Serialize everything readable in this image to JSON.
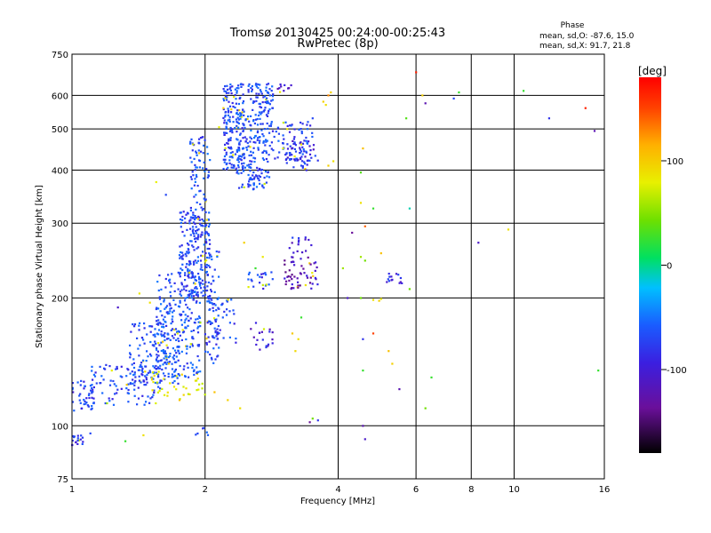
{
  "chart_data": {
    "type": "scatter",
    "title": "Tromsø 20130425 00:24:00-00:25:43",
    "subtitle": "RwPretec (8p)",
    "xlabel": "Frequency [MHz]",
    "ylabel": "Stationary phase Virtual Height [km]",
    "x_scale": "log",
    "y_scale": "log",
    "xlim": [
      1,
      16
    ],
    "ylim": [
      75,
      750
    ],
    "x_ticks": [
      {
        "value": 1,
        "label": "1"
      },
      {
        "value": 2,
        "label": "2"
      },
      {
        "value": 4,
        "label": "4"
      },
      {
        "value": 6,
        "label": "6"
      },
      {
        "value": 8,
        "label": "8"
      },
      {
        "value": 10,
        "label": "10"
      },
      {
        "value": 16,
        "label": "16"
      }
    ],
    "y_ticks": [
      {
        "value": 75,
        "label": "75"
      },
      {
        "value": 100,
        "label": "100"
      },
      {
        "value": 200,
        "label": "200"
      },
      {
        "value": 300,
        "label": "300"
      },
      {
        "value": 400,
        "label": "400"
      },
      {
        "value": 500,
        "label": "500"
      },
      {
        "value": 600,
        "label": "600"
      },
      {
        "value": 750,
        "label": "750"
      }
    ],
    "grid": true,
    "colorbar": {
      "label": "[deg]",
      "range": [
        -180,
        180
      ],
      "ticks": [
        {
          "value": 100,
          "label": "100"
        },
        {
          "value": 0,
          "label": "0"
        },
        {
          "value": -100,
          "label": "-100"
        }
      ]
    },
    "stats": {
      "heading": "Phase",
      "line_o": "mean, sd,O: -87.6, 15.0",
      "line_x": "mean, sd,X:  91.7, 21.8"
    },
    "clusters": [
      {
        "f": [
          1.0,
          1.06
        ],
        "h": [
          90,
          95
        ],
        "phase": -110,
        "n": 18
      },
      {
        "f": [
          1.0,
          1.12
        ],
        "h": [
          108,
          128
        ],
        "phase": -105,
        "n": 40
      },
      {
        "f": [
          1.1,
          1.6
        ],
        "h": [
          112,
          140
        ],
        "phase": -100,
        "n": 110
      },
      {
        "f": [
          1.35,
          1.75
        ],
        "h": [
          125,
          175
        ],
        "phase": -95,
        "n": 120
      },
      {
        "f": [
          1.5,
          2.0
        ],
        "h": [
          115,
          135
        ],
        "phase": 90,
        "n": 35
      },
      {
        "f": [
          1.55,
          1.95
        ],
        "h": [
          130,
          230
        ],
        "phase": -95,
        "n": 260
      },
      {
        "f": [
          1.75,
          2.05
        ],
        "h": [
          200,
          320
        ],
        "phase": -100,
        "n": 200
      },
      {
        "f": [
          1.85,
          2.05
        ],
        "h": [
          280,
          480
        ],
        "phase": -95,
        "n": 90
      },
      {
        "f": [
          2.0,
          2.15
        ],
        "h": [
          140,
          260
        ],
        "phase": -98,
        "n": 80
      },
      {
        "f": [
          2.05,
          2.35
        ],
        "h": [
          155,
          200
        ],
        "phase": -100,
        "n": 35
      },
      {
        "f": [
          2.2,
          2.45
        ],
        "h": [
          400,
          640
        ],
        "phase": -100,
        "n": 170
      },
      {
        "f": [
          2.35,
          2.8
        ],
        "h": [
          360,
          560
        ],
        "phase": -95,
        "n": 200
      },
      {
        "f": [
          2.5,
          2.85
        ],
        "h": [
          560,
          640
        ],
        "phase": -100,
        "n": 60
      },
      {
        "f": [
          2.8,
          3.5
        ],
        "h": [
          420,
          520
        ],
        "phase": -100,
        "n": 70
      },
      {
        "f": [
          3.0,
          3.6
        ],
        "h": [
          400,
          470
        ],
        "phase": -115,
        "n": 40
      },
      {
        "f": [
          2.45,
          2.85
        ],
        "h": [
          150,
          175
        ],
        "phase": -120,
        "n": 20
      },
      {
        "f": [
          2.5,
          2.85
        ],
        "h": [
          210,
          230
        ],
        "phase": -105,
        "n": 22
      },
      {
        "f": [
          3.0,
          3.6
        ],
        "h": [
          210,
          250
        ],
        "phase": -135,
        "n": 55
      },
      {
        "f": [
          3.1,
          3.5
        ],
        "h": [
          255,
          280
        ],
        "phase": -120,
        "n": 15
      },
      {
        "f": [
          3.3,
          3.45
        ],
        "h": [
          400,
          470
        ],
        "phase": -100,
        "n": 15
      },
      {
        "f": [
          5.1,
          5.6
        ],
        "h": [
          215,
          230
        ],
        "phase": -115,
        "n": 14
      },
      {
        "f": [
          2.9,
          3.15
        ],
        "h": [
          610,
          640
        ],
        "phase": -125,
        "n": 10
      },
      {
        "f": [
          1.9,
          2.1
        ],
        "h": [
          95,
          100
        ],
        "phase": -100,
        "n": 6
      }
    ],
    "extra_points": [
      {
        "f": 1.5,
        "h": 195,
        "phase": 100
      },
      {
        "f": 1.42,
        "h": 205,
        "phase": 95
      },
      {
        "f": 1.27,
        "h": 190,
        "phase": -130
      },
      {
        "f": 1.33,
        "h": 125,
        "phase": 110
      },
      {
        "f": 1.23,
        "h": 135,
        "phase": 90
      },
      {
        "f": 1.45,
        "h": 95,
        "phase": 100
      },
      {
        "f": 1.32,
        "h": 92,
        "phase": 20
      },
      {
        "f": 1.55,
        "h": 375,
        "phase": 90
      },
      {
        "f": 1.63,
        "h": 350,
        "phase": -100
      },
      {
        "f": 1.95,
        "h": 175,
        "phase": 60
      },
      {
        "f": 2.1,
        "h": 120,
        "phase": 120
      },
      {
        "f": 2.25,
        "h": 115,
        "phase": 110
      },
      {
        "f": 2.4,
        "h": 110,
        "phase": 100
      },
      {
        "f": 2.6,
        "h": 235,
        "phase": 20
      },
      {
        "f": 2.7,
        "h": 250,
        "phase": 95
      },
      {
        "f": 2.2,
        "h": 560,
        "phase": 110
      },
      {
        "f": 2.15,
        "h": 505,
        "phase": 90
      },
      {
        "f": 2.45,
        "h": 270,
        "phase": 110
      },
      {
        "f": 3.15,
        "h": 165,
        "phase": 115
      },
      {
        "f": 3.2,
        "h": 150,
        "phase": 105
      },
      {
        "f": 3.25,
        "h": 160,
        "phase": 100
      },
      {
        "f": 3.3,
        "h": 180,
        "phase": 20
      },
      {
        "f": 3.7,
        "h": 580,
        "phase": 110
      },
      {
        "f": 3.75,
        "h": 570,
        "phase": 100
      },
      {
        "f": 3.8,
        "h": 600,
        "phase": 140
      },
      {
        "f": 3.85,
        "h": 610,
        "phase": 110
      },
      {
        "f": 3.8,
        "h": 410,
        "phase": 110
      },
      {
        "f": 3.9,
        "h": 420,
        "phase": 100
      },
      {
        "f": 3.3,
        "h": 460,
        "phase": 100
      },
      {
        "f": 3.5,
        "h": 530,
        "phase": -100
      },
      {
        "f": 3.5,
        "h": 104,
        "phase": 40
      },
      {
        "f": 3.6,
        "h": 103,
        "phase": -110
      },
      {
        "f": 3.45,
        "h": 102,
        "phase": -150
      },
      {
        "f": 4.1,
        "h": 235,
        "phase": 60
      },
      {
        "f": 4.3,
        "h": 285,
        "phase": -150
      },
      {
        "f": 4.5,
        "h": 395,
        "phase": 30
      },
      {
        "f": 4.55,
        "h": 450,
        "phase": 120
      },
      {
        "f": 4.6,
        "h": 295,
        "phase": 150
      },
      {
        "f": 4.5,
        "h": 250,
        "phase": 60
      },
      {
        "f": 4.6,
        "h": 245,
        "phase": 40
      },
      {
        "f": 4.5,
        "h": 335,
        "phase": 100
      },
      {
        "f": 4.8,
        "h": 325,
        "phase": 20
      },
      {
        "f": 4.2,
        "h": 200,
        "phase": -130
      },
      {
        "f": 4.8,
        "h": 198,
        "phase": 100
      },
      {
        "f": 4.95,
        "h": 197,
        "phase": 110
      },
      {
        "f": 5.0,
        "h": 199,
        "phase": 95
      },
      {
        "f": 4.5,
        "h": 200,
        "phase": 40
      },
      {
        "f": 5.0,
        "h": 255,
        "phase": 120
      },
      {
        "f": 4.8,
        "h": 165,
        "phase": 160
      },
      {
        "f": 4.55,
        "h": 160,
        "phase": -110
      },
      {
        "f": 5.2,
        "h": 150,
        "phase": 120
      },
      {
        "f": 4.55,
        "h": 135,
        "phase": 20
      },
      {
        "f": 5.3,
        "h": 140,
        "phase": 110
      },
      {
        "f": 5.5,
        "h": 122,
        "phase": -140
      },
      {
        "f": 4.55,
        "h": 100,
        "phase": -140
      },
      {
        "f": 4.6,
        "h": 93,
        "phase": -130
      },
      {
        "f": 5.8,
        "h": 210,
        "phase": 40
      },
      {
        "f": 5.8,
        "h": 325,
        "phase": -20
      },
      {
        "f": 5.7,
        "h": 530,
        "phase": 30
      },
      {
        "f": 6.0,
        "h": 680,
        "phase": 170
      },
      {
        "f": 6.2,
        "h": 600,
        "phase": 110
      },
      {
        "f": 6.3,
        "h": 575,
        "phase": -140
      },
      {
        "f": 6.3,
        "h": 110,
        "phase": 40
      },
      {
        "f": 6.5,
        "h": 130,
        "phase": 20
      },
      {
        "f": 7.5,
        "h": 610,
        "phase": 20
      },
      {
        "f": 7.3,
        "h": 590,
        "phase": -100
      },
      {
        "f": 8.3,
        "h": 270,
        "phase": -130
      },
      {
        "f": 9.7,
        "h": 290,
        "phase": 100
      },
      {
        "f": 10.5,
        "h": 615,
        "phase": 20
      },
      {
        "f": 12.0,
        "h": 530,
        "phase": -110
      },
      {
        "f": 14.5,
        "h": 560,
        "phase": 170
      },
      {
        "f": 15.2,
        "h": 495,
        "phase": -140
      },
      {
        "f": 15.5,
        "h": 135,
        "phase": 20
      },
      {
        "f": 1.1,
        "h": 96,
        "phase": -100
      },
      {
        "f": 1.75,
        "h": 115,
        "phase": 120
      },
      {
        "f": 1.2,
        "h": 113,
        "phase": 60
      }
    ]
  }
}
